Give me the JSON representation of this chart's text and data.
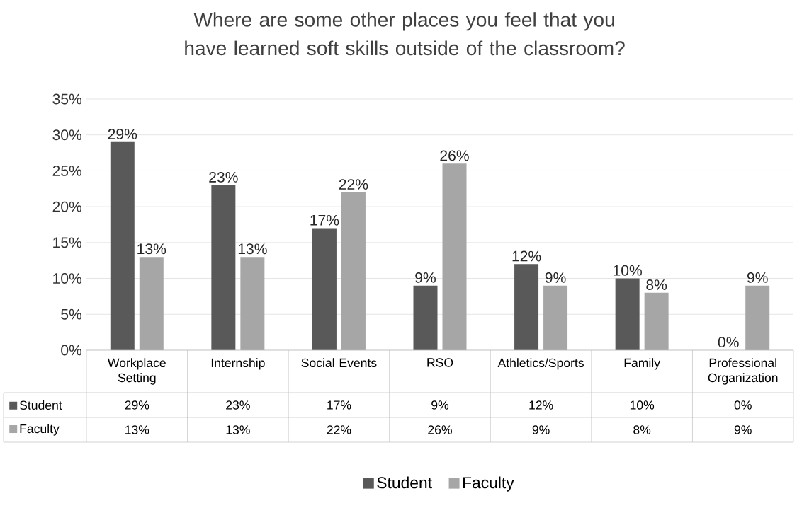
{
  "chart_data": {
    "type": "bar",
    "title": "Where are some other places you feel that you have learned soft skills outside of the classroom?",
    "categories": [
      "Workplace Setting",
      "Internship",
      "Social Events",
      "RSO",
      "Athletics/Sports",
      "Family",
      "Professional Organization"
    ],
    "series": [
      {
        "name": "Student",
        "color": "#595959",
        "values": [
          29,
          23,
          17,
          9,
          12,
          10,
          0
        ],
        "value_labels": [
          "29%",
          "23%",
          "17%",
          "9%",
          "12%",
          "10%",
          "0%"
        ]
      },
      {
        "name": "Faculty",
        "color": "#a6a6a6",
        "values": [
          13,
          13,
          22,
          26,
          9,
          8,
          9
        ],
        "value_labels": [
          "13%",
          "13%",
          "22%",
          "26%",
          "9%",
          "8%",
          "9%"
        ]
      }
    ],
    "ylim": [
      0,
      35
    ],
    "yticks": [
      {
        "value": 0,
        "label": "0%"
      },
      {
        "value": 5,
        "label": "5%"
      },
      {
        "value": 10,
        "label": "10%"
      },
      {
        "value": 15,
        "label": "15%"
      },
      {
        "value": 20,
        "label": "20%"
      },
      {
        "value": 25,
        "label": "25%"
      },
      {
        "value": 30,
        "label": "30%"
      },
      {
        "value": 35,
        "label": "35%"
      }
    ],
    "grid": "y",
    "legend": "bottom"
  }
}
